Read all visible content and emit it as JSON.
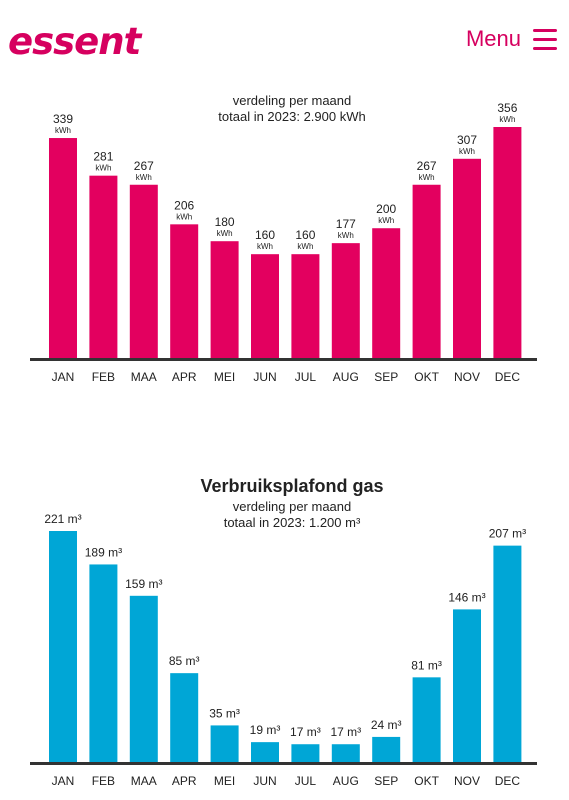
{
  "header": {
    "logo": "essent",
    "menu_label": "Menu",
    "menu_icon": "hamburger-icon"
  },
  "colors": {
    "brand": "#d6005f",
    "electricity": "#e3005f",
    "gas": "#00a6d6",
    "axis": "#333333"
  },
  "chart_data": [
    {
      "type": "bar",
      "title": "",
      "subtitle_lines": [
        "verdeling per maand",
        "totaal in 2023: 2.900 kWh"
      ],
      "categories": [
        "JAN",
        "FEB",
        "MAA",
        "APR",
        "MEI",
        "JUN",
        "JUL",
        "AUG",
        "SEP",
        "OKT",
        "NOV",
        "DEC"
      ],
      "values": [
        339,
        281,
        267,
        206,
        180,
        160,
        160,
        177,
        200,
        267,
        307,
        356
      ],
      "unit": "kWh",
      "label_style": "stacked",
      "ylim": [
        0,
        356
      ],
      "grid": false,
      "legend": "none"
    },
    {
      "type": "bar",
      "title": "Verbruiksplafond gas",
      "subtitle_lines": [
        "verdeling per maand",
        "totaal in 2023: 1.200 m³"
      ],
      "categories": [
        "JAN",
        "FEB",
        "MAA",
        "APR",
        "MEI",
        "JUN",
        "JUL",
        "AUG",
        "SEP",
        "OKT",
        "NOV",
        "DEC"
      ],
      "values": [
        221,
        189,
        159,
        85,
        35,
        19,
        17,
        17,
        24,
        81,
        146,
        207
      ],
      "unit": "m³",
      "label_style": "inline",
      "ylim": [
        0,
        221
      ],
      "grid": false,
      "legend": "none"
    }
  ]
}
